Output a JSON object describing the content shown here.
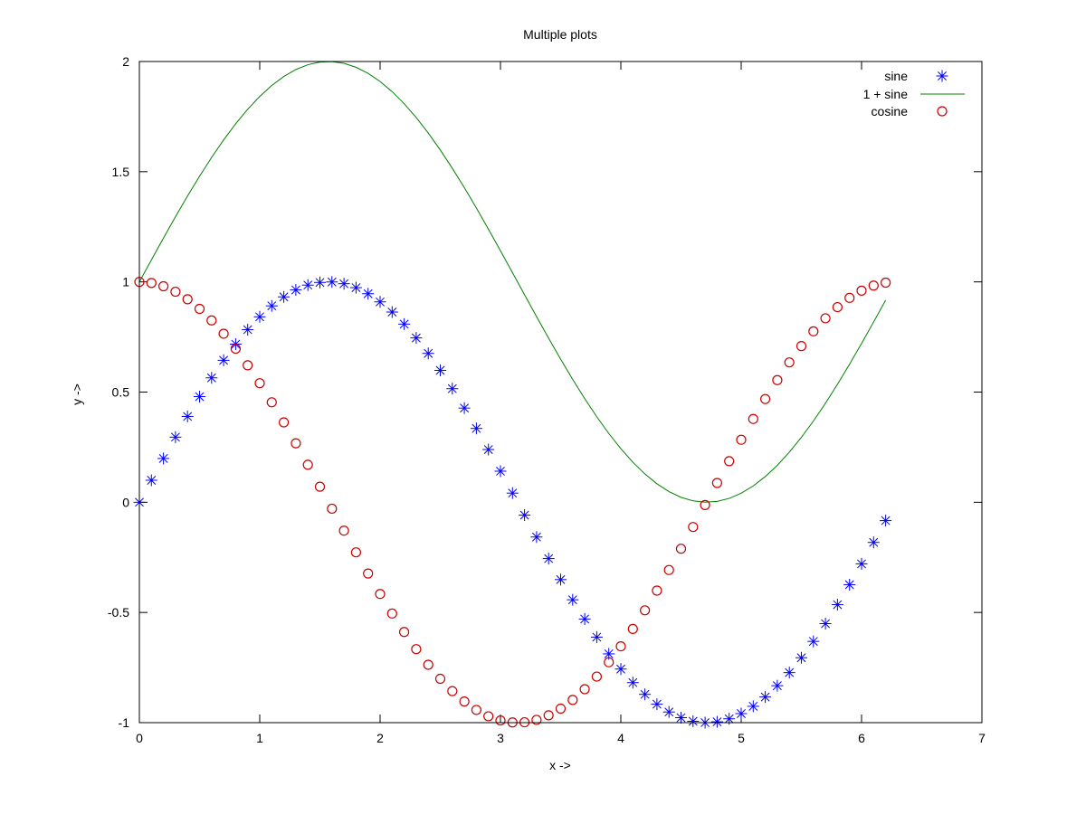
{
  "chart_data": {
    "type": "line",
    "title": "Multiple plots",
    "xlabel": "x ->",
    "ylabel": "y ->",
    "xlim": [
      0,
      7
    ],
    "ylim": [
      -1,
      2
    ],
    "x_ticks": [
      0,
      1,
      2,
      3,
      4,
      5,
      6,
      7
    ],
    "y_ticks": [
      -1,
      -0.5,
      0,
      0.5,
      1,
      1.5,
      2
    ],
    "x_tick_labels": [
      "0",
      "1",
      "2",
      "3",
      "4",
      "5",
      "6",
      "7"
    ],
    "y_tick_labels": [
      "-1",
      "-0.5",
      "0",
      "0.5",
      "1",
      "1.5",
      "2"
    ],
    "grid": false,
    "legend_position": "top-right",
    "x": [
      0.0,
      0.1,
      0.2,
      0.3,
      0.4,
      0.5,
      0.6,
      0.7,
      0.8,
      0.9,
      1.0,
      1.1,
      1.2,
      1.3,
      1.4,
      1.5,
      1.6,
      1.7,
      1.8,
      1.9,
      2.0,
      2.1,
      2.2,
      2.3,
      2.4,
      2.5,
      2.6,
      2.7,
      2.8,
      2.9,
      3.0,
      3.1,
      3.2,
      3.3,
      3.4,
      3.5,
      3.6,
      3.7,
      3.8,
      3.9,
      4.0,
      4.1,
      4.2,
      4.3,
      4.4,
      4.5,
      4.6,
      4.7,
      4.8,
      4.9,
      5.0,
      5.1,
      5.2,
      5.3,
      5.4,
      5.5,
      5.6,
      5.7,
      5.8,
      5.9,
      6.0,
      6.1,
      6.2
    ],
    "series": [
      {
        "name": "sine",
        "style": "points",
        "marker": "star",
        "color": "#0000ff",
        "values": [
          0.0,
          0.0998,
          0.1987,
          0.2955,
          0.3894,
          0.4794,
          0.5646,
          0.6442,
          0.7174,
          0.7833,
          0.8415,
          0.8912,
          0.932,
          0.9636,
          0.9854,
          0.9975,
          0.9996,
          0.9917,
          0.9738,
          0.9463,
          0.9093,
          0.8632,
          0.8085,
          0.7457,
          0.6755,
          0.5985,
          0.5155,
          0.4274,
          0.335,
          0.2392,
          0.1411,
          0.0416,
          -0.0584,
          -0.1577,
          -0.2555,
          -0.3508,
          -0.4425,
          -0.5298,
          -0.6119,
          -0.6878,
          -0.7568,
          -0.8183,
          -0.8716,
          -0.9162,
          -0.9516,
          -0.9775,
          -0.9937,
          -0.9999,
          -0.9962,
          -0.9825,
          -0.9589,
          -0.9258,
          -0.8835,
          -0.8323,
          -0.7728,
          -0.7055,
          -0.6313,
          -0.5507,
          -0.4646,
          -0.3739,
          -0.2794,
          -0.1822,
          -0.0831
        ]
      },
      {
        "name": "1 + sine",
        "style": "line",
        "color": "#008000",
        "values": [
          1.0,
          1.0998,
          1.1987,
          1.2955,
          1.3894,
          1.4794,
          1.5646,
          1.6442,
          1.7174,
          1.7833,
          1.8415,
          1.8912,
          1.932,
          1.9636,
          1.9854,
          1.9975,
          1.9996,
          1.9917,
          1.9738,
          1.9463,
          1.9093,
          1.8632,
          1.8085,
          1.7457,
          1.6755,
          1.5985,
          1.5155,
          1.4274,
          1.335,
          1.2392,
          1.1411,
          1.0416,
          0.9416,
          0.8423,
          0.7445,
          0.6492,
          0.5575,
          0.4702,
          0.3881,
          0.3122,
          0.2432,
          0.1817,
          0.1284,
          0.0838,
          0.0484,
          0.0225,
          0.0063,
          0.0001,
          0.0038,
          0.0175,
          0.0411,
          0.0742,
          0.1165,
          0.1677,
          0.2272,
          0.2945,
          0.3687,
          0.4493,
          0.5354,
          0.6261,
          0.7206,
          0.8178,
          0.9169
        ]
      },
      {
        "name": "cosine",
        "style": "points",
        "marker": "circle",
        "color": "#cc0000",
        "values": [
          1.0,
          0.995,
          0.9801,
          0.9553,
          0.9211,
          0.8776,
          0.8253,
          0.7648,
          0.6967,
          0.6216,
          0.5403,
          0.4536,
          0.3624,
          0.2675,
          0.17,
          0.0707,
          -0.0292,
          -0.1288,
          -0.2272,
          -0.3233,
          -0.4161,
          -0.5048,
          -0.5885,
          -0.6663,
          -0.7374,
          -0.8011,
          -0.8569,
          -0.9041,
          -0.9422,
          -0.971,
          -0.99,
          -0.9991,
          -0.9983,
          -0.9875,
          -0.9668,
          -0.9365,
          -0.8968,
          -0.8481,
          -0.791,
          -0.7259,
          -0.6536,
          -0.5748,
          -0.4903,
          -0.4008,
          -0.3073,
          -0.2108,
          -0.1122,
          -0.0124,
          0.0875,
          0.1865,
          0.2837,
          0.378,
          0.4685,
          0.5544,
          0.6347,
          0.7087,
          0.7756,
          0.8347,
          0.8855,
          0.9275,
          0.9602,
          0.9833,
          0.9965
        ]
      }
    ]
  }
}
